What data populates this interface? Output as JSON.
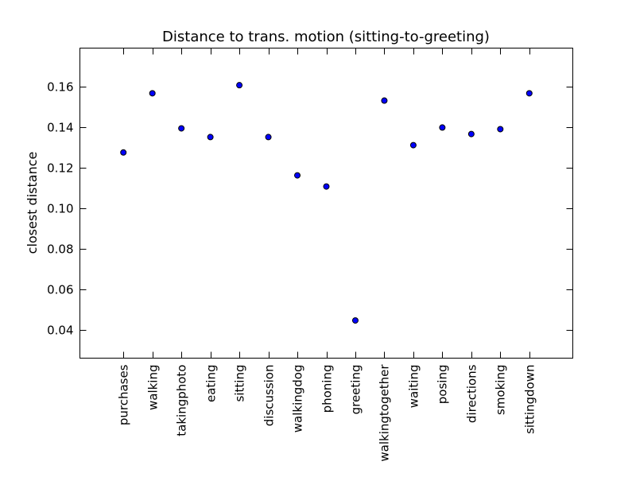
{
  "chart_data": {
    "type": "scatter",
    "title": "Distance to trans. motion (sitting-to-greeting)",
    "xlabel": "",
    "ylabel": "closest distance",
    "ylim": [
      0.026,
      0.179
    ],
    "yticks": [
      "0.04",
      "0.06",
      "0.08",
      "0.10",
      "0.12",
      "0.14",
      "0.16"
    ],
    "ytick_values": [
      0.04,
      0.06,
      0.08,
      0.1,
      0.12,
      0.14,
      0.16
    ],
    "grid": false,
    "legend": "none",
    "marker_color": "#0000ff",
    "categories": [
      "purchases",
      "walking",
      "takingphoto",
      "eating",
      "sitting",
      "discussion",
      "walkingdog",
      "phoning",
      "greeting",
      "walkingtogether",
      "waiting",
      "posing",
      "directions",
      "smoking",
      "sittingdown"
    ],
    "values": [
      0.1275,
      0.1567,
      0.1394,
      0.1351,
      0.1607,
      0.1351,
      0.1162,
      0.1107,
      0.0446,
      0.1531,
      0.1311,
      0.1398,
      0.1366,
      0.139,
      0.1567
    ]
  }
}
